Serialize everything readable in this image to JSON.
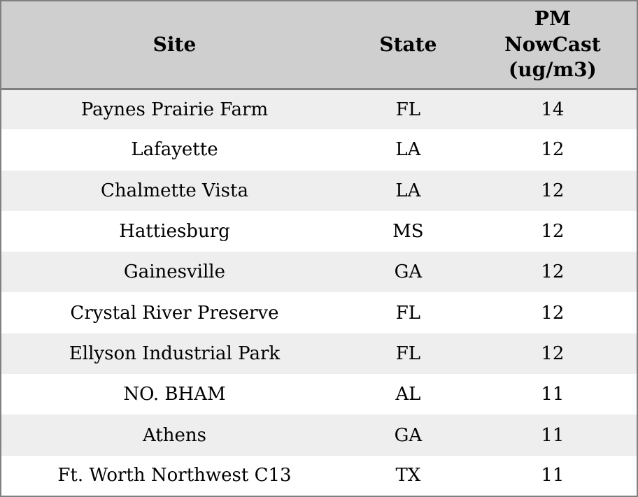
{
  "colors": {
    "header_bg": "#cfcfcf",
    "row_shaded_bg": "#eeeeee",
    "row_plain_bg": "#ffffff",
    "border": "#808080",
    "text": "#000000"
  },
  "table": {
    "columns": [
      {
        "id": "site",
        "label": "Site"
      },
      {
        "id": "state",
        "label": "State"
      },
      {
        "id": "pm_nowcast",
        "label": "PM\nNowCast\n(ug/m3)"
      }
    ],
    "rows": [
      {
        "site": "Paynes Prairie Farm",
        "state": "FL",
        "pm_nowcast": "14"
      },
      {
        "site": "Lafayette",
        "state": "LA",
        "pm_nowcast": "12"
      },
      {
        "site": "Chalmette Vista",
        "state": "LA",
        "pm_nowcast": "12"
      },
      {
        "site": "Hattiesburg",
        "state": "MS",
        "pm_nowcast": "12"
      },
      {
        "site": "Gainesville",
        "state": "GA",
        "pm_nowcast": "12"
      },
      {
        "site": "Crystal River Preserve",
        "state": "FL",
        "pm_nowcast": "12"
      },
      {
        "site": "Ellyson Industrial Park",
        "state": "FL",
        "pm_nowcast": "12"
      },
      {
        "site": "NO. BHAM",
        "state": "AL",
        "pm_nowcast": "11"
      },
      {
        "site": "Athens",
        "state": "GA",
        "pm_nowcast": "11"
      },
      {
        "site": "Ft. Worth Northwest C13",
        "state": "TX",
        "pm_nowcast": "11"
      }
    ]
  },
  "chart_data": {
    "type": "table",
    "title": "",
    "columns": [
      "Site",
      "State",
      "PM NowCast (ug/m3)"
    ],
    "rows": [
      [
        "Paynes Prairie Farm",
        "FL",
        14
      ],
      [
        "Lafayette",
        "LA",
        12
      ],
      [
        "Chalmette Vista",
        "LA",
        12
      ],
      [
        "Hattiesburg",
        "MS",
        12
      ],
      [
        "Gainesville",
        "GA",
        12
      ],
      [
        "Crystal River Preserve",
        "FL",
        12
      ],
      [
        "Ellyson Industrial Park",
        "FL",
        12
      ],
      [
        "NO. BHAM",
        "AL",
        11
      ],
      [
        "Athens",
        "GA",
        11
      ],
      [
        "Ft. Worth Northwest C13",
        "TX",
        11
      ]
    ]
  }
}
